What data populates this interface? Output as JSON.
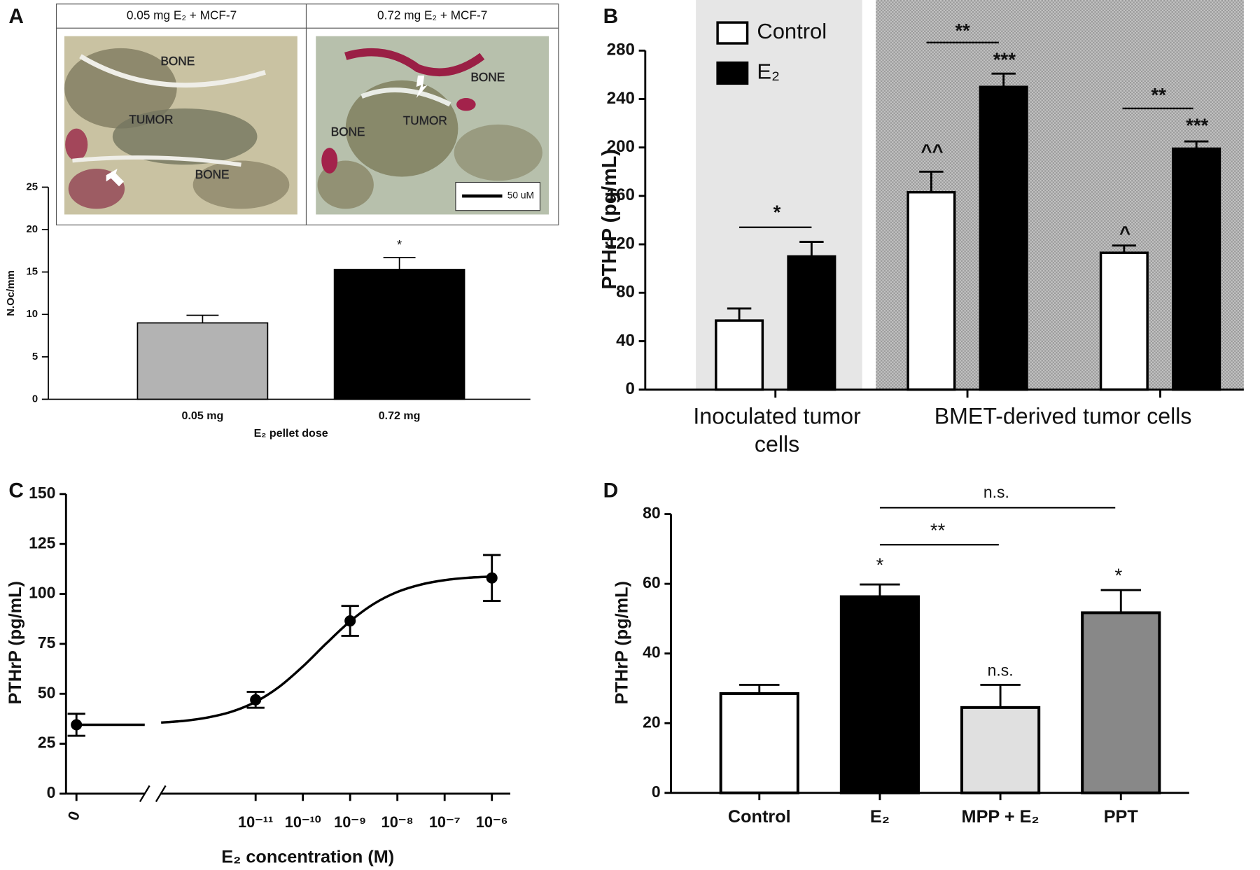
{
  "chart_data": [
    {
      "type": "bar",
      "panel_label": "A",
      "image_titles": [
        "0.05 mg E₂ + MCF-7",
        "0.72 mg E₂ + MCF-7"
      ],
      "image_labels": [
        [
          "BONE",
          "TUMOR",
          "BONE"
        ],
        [
          "BONE",
          "BONE",
          "TUMOR"
        ]
      ],
      "scale_bar": "50 uM",
      "categories": [
        "0.05 mg",
        "0.72 mg"
      ],
      "values": [
        9,
        15.3
      ],
      "errors": [
        0.9,
        1.4
      ],
      "colors": [
        "#b3b3b3",
        "#000000"
      ],
      "ylabel": "N.Oc/mm",
      "xlabel": "E₂ pellet dose",
      "ylim": [
        0,
        25
      ],
      "yticks": [
        0,
        5,
        10,
        15,
        20,
        25
      ],
      "annotations": [
        "*"
      ]
    },
    {
      "type": "bar",
      "panel_label": "B",
      "categories": [
        null,
        null,
        null
      ],
      "group_labels": [
        [
          "Inoculated tumor",
          "cells"
        ],
        [
          "BMET-derived tumor cells"
        ]
      ],
      "series": [
        {
          "name": "Control",
          "color": "#ffffff",
          "values": [
            57,
            163,
            113
          ],
          "errors": [
            10,
            17,
            6
          ]
        },
        {
          "name": "E₂",
          "color": "#000000",
          "values": [
            110,
            250,
            199
          ],
          "errors": [
            12,
            11,
            6
          ]
        }
      ],
      "ylabel": "PTHrP (pg/mL)",
      "ylim": [
        0,
        280
      ],
      "yticks": [
        0,
        40,
        80,
        120,
        160,
        200,
        240,
        280
      ],
      "legend": "upper left",
      "annotations": [
        "*",
        "**",
        "***",
        "^^",
        "**",
        "***",
        "^"
      ]
    },
    {
      "type": "line",
      "panel_label": "C",
      "x": [
        0,
        1e-11,
        1e-09,
        1e-06
      ],
      "values": [
        34.5,
        47,
        86.5,
        108
      ],
      "errors": [
        5.5,
        4,
        7.5,
        11.5
      ],
      "color": "#000000",
      "fit": {
        "x": [
          0,
          1e-13,
          3.16e-13,
          1e-12,
          3.16e-12,
          1e-11,
          3.16e-11,
          1e-10,
          3.16e-10,
          1e-09,
          3.16e-09,
          1e-08,
          3.16e-08,
          1e-07,
          3.16e-07,
          1e-06
        ],
        "values": [
          34.5,
          35.6,
          36.5,
          38.2,
          41.1,
          46.0,
          53.5,
          63.7,
          75.3,
          86.3,
          95.0,
          101.0,
          104.7,
          106.9,
          108.1,
          108.7
        ]
      },
      "xlog": true,
      "xlim": [
        1e-13,
        2.5e-06
      ],
      "xticks": [
        0,
        {
          "value": 1e-11,
          "label": "10⁻¹¹"
        },
        {
          "value": 1e-10,
          "label": "10⁻¹⁰"
        },
        {
          "value": 1e-09,
          "label": "10⁻⁹"
        },
        {
          "value": 1e-08,
          "label": "10⁻⁸"
        },
        {
          "value": 1e-07,
          "label": "10⁻⁷"
        },
        {
          "value": 1e-06,
          "label": "10⁻⁶"
        }
      ],
      "ylim": [
        0,
        150
      ],
      "yticks": [
        0,
        25,
        50,
        75,
        100,
        125,
        150
      ],
      "ylabel": "PTHrP (pg/mL)",
      "xlabel": "E₂ concentration (M)"
    },
    {
      "type": "bar",
      "panel_label": "D",
      "categories": [
        "Control",
        "E₂",
        "MPP + E₂",
        "PPT"
      ],
      "values": [
        28.5,
        56.3,
        24.5,
        51.7
      ],
      "errors": [
        2.5,
        3.5,
        6.5,
        6.5
      ],
      "colors": [
        "#ffffff",
        "#000000",
        "#e0e0e0",
        "#888888"
      ],
      "ylabel": "PTHrP (pg/mL)",
      "ylim": [
        0,
        80
      ],
      "yticks": [
        0,
        20,
        40,
        60,
        80
      ],
      "annotations": [
        "*",
        "n.s.",
        "*",
        "**",
        "n.s."
      ]
    }
  ]
}
